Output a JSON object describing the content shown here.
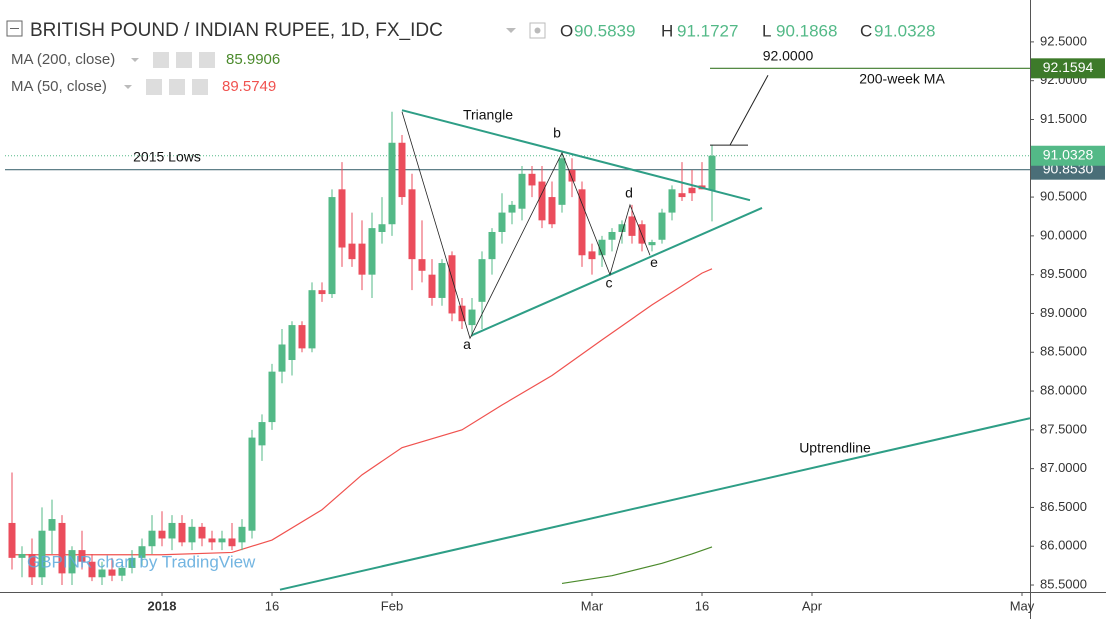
{
  "chart_data": {
    "type": "candlestick",
    "title": "BRITISH POUND / INDIAN RUPEE, 1D, FX_IDC",
    "ohlc_keys": [
      "O",
      "H",
      "L",
      "C"
    ],
    "watermark": "GBPINR chart by TradingView",
    "up_color": "#53b987",
    "down_color": "#eb4d5c",
    "x": [
      -15,
      -14,
      -13,
      -12,
      -11,
      -10,
      -9,
      -8,
      -7,
      -6,
      -5,
      -4,
      -3,
      -2,
      -1,
      0,
      1,
      2,
      3,
      4,
      5,
      6,
      7,
      8,
      9,
      10,
      11,
      12,
      13,
      14,
      15,
      16,
      17,
      18,
      19,
      20,
      21,
      22,
      23,
      24,
      25,
      26,
      27,
      28,
      29,
      30,
      31,
      32,
      33,
      34,
      35,
      36,
      37,
      38,
      39,
      40,
      41,
      42,
      43,
      44,
      45,
      46,
      47,
      48,
      49,
      50,
      51,
      52,
      53,
      54,
      55
    ],
    "open": [
      86.3,
      85.85,
      85.9,
      85.6,
      86.2,
      86.3,
      85.65,
      85.95,
      85.8,
      85.6,
      85.7,
      85.62,
      85.72,
      85.85,
      86.0,
      86.2,
      86.1,
      86.3,
      86.05,
      86.25,
      86.1,
      86.05,
      86.1,
      86.05,
      86.2,
      87.3,
      87.6,
      88.25,
      88.4,
      88.85,
      88.55,
      89.3,
      89.25,
      90.6,
      89.9,
      89.9,
      89.5,
      90.05,
      90.15,
      91.2,
      90.6,
      89.7,
      89.5,
      89.2,
      89.75,
      89.1,
      88.85,
      89.15,
      89.7,
      90.05,
      90.3,
      90.35,
      90.8,
      90.7,
      90.5,
      90.4,
      90.85,
      90.6,
      89.8,
      89.75,
      89.95,
      90.05,
      90.25,
      90.15,
      89.88,
      89.95,
      90.3,
      90.55,
      90.62,
      90.65,
      90.5839
    ],
    "high": [
      86.95,
      86.0,
      86.1,
      86.5,
      86.6,
      86.4,
      86.0,
      86.2,
      85.9,
      85.8,
      85.85,
      85.8,
      85.95,
      86.1,
      86.4,
      86.45,
      86.4,
      86.4,
      86.35,
      86.3,
      86.2,
      86.2,
      86.3,
      86.35,
      87.5,
      87.7,
      88.35,
      88.8,
      88.9,
      88.9,
      89.4,
      89.4,
      90.6,
      90.95,
      90.3,
      90.2,
      90.3,
      90.5,
      91.6,
      91.3,
      90.8,
      90.2,
      89.7,
      89.7,
      89.8,
      89.2,
      89.2,
      89.8,
      90.1,
      90.55,
      90.45,
      90.9,
      90.9,
      90.9,
      90.7,
      91.1,
      91.0,
      90.7,
      89.9,
      90.0,
      90.1,
      90.2,
      90.4,
      90.2,
      89.95,
      90.35,
      90.65,
      90.95,
      90.85,
      90.95,
      91.1727
    ],
    "low": [
      85.7,
      85.6,
      85.5,
      85.5,
      85.9,
      85.5,
      85.5,
      85.7,
      85.55,
      85.5,
      85.55,
      85.55,
      85.65,
      85.75,
      85.9,
      86.0,
      85.95,
      86.0,
      85.95,
      86.0,
      85.95,
      85.95,
      85.95,
      85.95,
      86.1,
      87.1,
      87.5,
      88.1,
      88.2,
      88.5,
      88.5,
      89.15,
      89.2,
      89.6,
      89.6,
      89.3,
      89.2,
      89.9,
      90.0,
      90.4,
      89.3,
      89.4,
      89.1,
      89.1,
      88.9,
      88.8,
      88.7,
      88.8,
      89.5,
      89.9,
      90.15,
      90.2,
      90.5,
      90.1,
      90.1,
      90.3,
      90.5,
      89.6,
      89.5,
      89.6,
      89.8,
      89.9,
      89.9,
      89.8,
      89.8,
      89.9,
      90.2,
      90.45,
      90.45,
      90.6,
      90.1868
    ],
    "close": [
      85.85,
      85.9,
      85.6,
      86.2,
      86.35,
      85.65,
      85.95,
      85.8,
      85.6,
      85.7,
      85.62,
      85.72,
      85.85,
      86.0,
      86.2,
      86.1,
      86.3,
      86.05,
      86.25,
      86.1,
      86.05,
      86.1,
      86.0,
      86.25,
      87.4,
      87.6,
      88.25,
      88.6,
      88.85,
      88.55,
      89.3,
      89.25,
      90.5,
      89.85,
      89.7,
      89.5,
      90.1,
      90.15,
      91.2,
      90.5,
      89.7,
      89.55,
      89.2,
      89.65,
      89.0,
      88.9,
      89.05,
      89.7,
      90.05,
      90.3,
      90.4,
      90.8,
      90.65,
      90.2,
      90.15,
      91.0,
      90.7,
      89.75,
      89.7,
      89.95,
      90.05,
      90.15,
      90.0,
      89.9,
      89.92,
      90.3,
      90.6,
      90.5,
      90.55,
      90.6,
      91.0328
    ],
    "ma_series": [
      {
        "name": "MA (200, close)",
        "color": "#4b8a2c",
        "x": [
          40,
          45,
          50,
          53,
          55
        ],
        "values": [
          85.52,
          85.62,
          85.78,
          85.9,
          85.9906
        ]
      },
      {
        "name": "MA (50, close)",
        "color": "#f0524f",
        "x": [
          -15,
          0,
          7,
          11,
          16,
          20,
          24,
          30,
          34,
          39,
          44,
          49,
          54,
          55
        ],
        "values": [
          85.89,
          85.89,
          85.92,
          86.08,
          86.47,
          86.92,
          87.27,
          87.5,
          87.82,
          88.2,
          88.66,
          89.11,
          89.52,
          89.5749
        ]
      }
    ],
    "levels": [
      {
        "label": "2015 Lows",
        "price": {
          "value": 90.853,
          "label": "90.8530"
        },
        "color": "#4a6e78"
      },
      {
        "label": "200-week MA",
        "price": 92.1594,
        "from": 54.8,
        "color": "#3d7a2a"
      }
    ],
    "triangle": {
      "label": "Triangle",
      "color": "#2e9e86",
      "upper": {
        "x": [
          24,
          58.8
        ],
        "y": [
          91.62,
          90.46
        ]
      },
      "lower": {
        "x": [
          31,
          60
        ],
        "y": [
          88.72,
          90.36
        ]
      }
    },
    "waves": {
      "labels": [
        null,
        "a",
        "b",
        "c",
        "d",
        "e"
      ],
      "color": "#222222",
      "x": [
        24,
        30.8,
        40,
        44.8,
        46.8,
        48.8
      ],
      "y": [
        91.6,
        88.68,
        91.07,
        89.5,
        90.4,
        89.75
      ]
    },
    "callout": {
      "label": "92.0000",
      "color": "#222222",
      "x": [
        60.6,
        56.8,
        54.8,
        58.6
      ],
      "y": [
        92.07,
        91.17,
        91.17,
        91.17
      ]
    },
    "uptrend": {
      "label": "Uptrendline",
      "color": "#2e9e86",
      "x": [
        11.8,
        86.8
      ],
      "y": [
        85.44,
        87.65
      ]
    },
    "xlim": [
      -15.7,
      86.8
    ],
    "ylim": [
      85.41,
      93.04
    ],
    "xticks": [
      {
        "value": 0,
        "label": "2018"
      },
      {
        "value": 11,
        "label": "16"
      },
      {
        "value": 23,
        "label": "Feb"
      },
      {
        "value": 43,
        "label": "Mar"
      },
      {
        "value": 54,
        "label": "16"
      },
      {
        "value": 65,
        "label": "Apr"
      },
      {
        "value": 86,
        "label": "May"
      }
    ],
    "yticks": [
      {
        "value": 85.5,
        "label": "85.5000"
      },
      {
        "value": 86,
        "label": "86.0000"
      },
      {
        "value": 86.5,
        "label": "86.5000"
      },
      {
        "value": 87,
        "label": "87.0000"
      },
      {
        "value": 87.5,
        "label": "87.5000"
      },
      {
        "value": 88,
        "label": "88.0000"
      },
      {
        "value": 88.5,
        "label": "88.5000"
      },
      {
        "value": 89,
        "label": "89.0000"
      },
      {
        "value": 89.5,
        "label": "89.5000"
      },
      {
        "value": 90,
        "label": "90.0000"
      },
      {
        "value": 90.5,
        "label": "90.5000"
      },
      {
        "value": 91,
        "label": "91.0000"
      },
      {
        "value": 91.5,
        "label": "91.5000"
      },
      {
        "value": 92,
        "label": "92.0000"
      },
      {
        "value": 92.5,
        "label": "92.5000"
      }
    ]
  }
}
